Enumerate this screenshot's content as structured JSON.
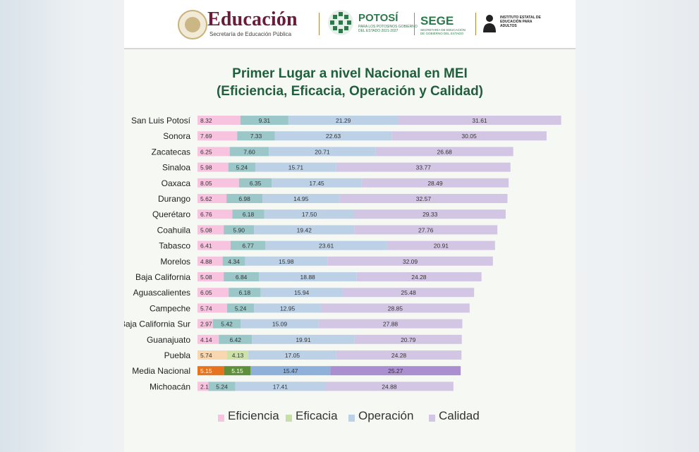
{
  "header": {
    "brand_title": "Educación",
    "brand_subtitle": "Secretaría de Educación Pública",
    "potosi_title": "POTOSÍ",
    "potosi_subtitle": "PARA LOS POTOSINOS GOBIERNO DEL ESTADO 2021-2027",
    "sege_title": "SEGE",
    "sege_subtitle": "SECRETARÍA DE EDUCACIÓN DE GOBIERNO DEL ESTADO",
    "ieepa_text": "INSTITUTO ESTATAL DE EDUCACIÓN PARA ADULTOS"
  },
  "colors": {
    "eficiencia": "#f7c3df",
    "eficacia": "#c7dea6",
    "operacion": "#bcd0e6",
    "calidad": "#d3c6e4",
    "eficacia_bar": "#9cc7c9",
    "media_eficiencia": "#e8731f",
    "media_eficacia": "#5f8f3a",
    "media_operacion": "#8fb0d8",
    "media_calidad": "#a98fd0",
    "puebla_eficiencia": "#f8d6b0",
    "puebla_eficacia": "#cde2a6"
  },
  "chart_data": {
    "type": "bar",
    "orientation": "horizontal",
    "stacked": true,
    "title": "Primer Lugar a nivel Nacional en MEI",
    "subtitle": "(Eficiencia, Eficacia, Operación y Calidad)",
    "categories": [
      "San Luis Potosí",
      "Sonora",
      "Zacatecas",
      "Sinaloa",
      "Oaxaca",
      "Durango",
      "Querétaro",
      "Coahuila",
      "Tabasco",
      "Morelos",
      "Baja California",
      "Aguascalientes",
      "Campeche",
      "Baja California Sur",
      "Guanajuato",
      "Puebla",
      "Media Nacional",
      "Michoacán"
    ],
    "series": [
      {
        "name": "Eficiencia",
        "values": [
          8.32,
          7.69,
          6.25,
          5.98,
          8.05,
          5.62,
          6.76,
          5.08,
          6.41,
          4.88,
          5.08,
          6.05,
          5.74,
          2.97,
          4.14,
          5.74,
          5.15,
          2.11
        ]
      },
      {
        "name": "Eficacia",
        "values": [
          9.31,
          7.33,
          7.6,
          5.24,
          6.35,
          6.98,
          6.18,
          5.9,
          6.77,
          4.34,
          6.84,
          6.18,
          5.24,
          5.42,
          6.42,
          4.13,
          5.15,
          5.24
        ]
      },
      {
        "name": "Operación",
        "values": [
          21.29,
          22.63,
          20.71,
          15.71,
          17.45,
          14.95,
          17.5,
          19.42,
          23.61,
          15.98,
          18.88,
          15.94,
          12.95,
          15.09,
          19.91,
          17.05,
          15.47,
          17.41
        ]
      },
      {
        "name": "Calidad",
        "values": [
          31.61,
          30.05,
          26.68,
          33.77,
          28.49,
          32.57,
          29.33,
          27.76,
          20.91,
          32.09,
          24.28,
          25.48,
          28.85,
          27.88,
          20.79,
          24.28,
          25.27,
          24.88
        ]
      }
    ],
    "value_labels": [
      [
        "8.32",
        "9.31",
        "21.29",
        "31.61"
      ],
      [
        "7.69",
        "7.33",
        "22.63",
        "30.05"
      ],
      [
        "6.25",
        "7.60",
        "20.71",
        "26.68"
      ],
      [
        "5.98",
        "5.24",
        "15.71",
        "33.77"
      ],
      [
        "8.05",
        "6.35",
        "17.45",
        "28.49"
      ],
      [
        "5.62",
        "6.98",
        "14.95",
        "32.57"
      ],
      [
        "6.76",
        "6.18",
        "17.50",
        "29.33"
      ],
      [
        "5.08",
        "5.90",
        "19.42",
        "27.76"
      ],
      [
        "6.41",
        "6.77",
        "23.61",
        "20.91"
      ],
      [
        "4.88",
        "4.34",
        "15.98",
        "32.09"
      ],
      [
        "5.08",
        "6.84",
        "18.88",
        "24.28"
      ],
      [
        "6.05",
        "6.18",
        "15.94",
        "25.48"
      ],
      [
        "5.74",
        "5.24",
        "12.95",
        "28.85"
      ],
      [
        "2.97",
        "5.42",
        "15.09",
        "27.88"
      ],
      [
        "4.14",
        "6.42",
        "19.91",
        "20.79"
      ],
      [
        "5.74",
        "4.13",
        "17.05",
        "24.28"
      ],
      [
        "5.15",
        "5.15",
        "15.47",
        "25.27"
      ],
      [
        "2.11",
        "5.24",
        "17.41",
        "24.88"
      ]
    ],
    "highlight_row": "Media Nacional",
    "legend": [
      "Eficiencia",
      "Eficacia",
      "Operación",
      "Calidad"
    ],
    "legend_position": "bottom"
  }
}
